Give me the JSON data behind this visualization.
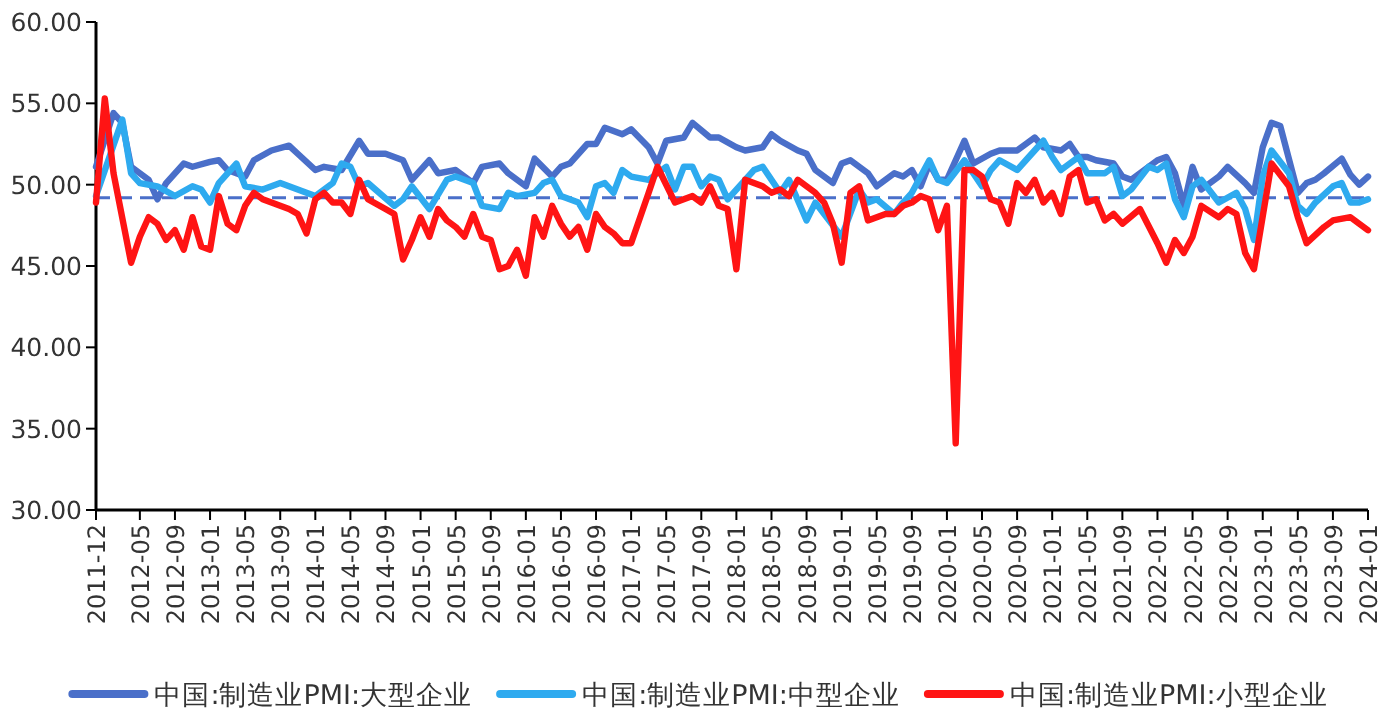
{
  "chart_data": {
    "type": "line",
    "ylim": [
      30,
      60
    ],
    "yticks": [
      {
        "value": 30,
        "label": "30.00"
      },
      {
        "value": 35,
        "label": "35.00"
      },
      {
        "value": 40,
        "label": "40.00"
      },
      {
        "value": 45,
        "label": "45.00"
      },
      {
        "value": 50,
        "label": "50.00"
      },
      {
        "value": 55,
        "label": "55.00"
      },
      {
        "value": 60,
        "label": "60.00"
      }
    ],
    "xlim": [
      "2011-12",
      "2024-01"
    ],
    "xticks": [
      "2011-12",
      "2012-05",
      "2012-09",
      "2013-01",
      "2013-05",
      "2013-09",
      "2014-01",
      "2014-05",
      "2014-09",
      "2015-01",
      "2015-05",
      "2015-09",
      "2016-01",
      "2016-05",
      "2016-09",
      "2017-01",
      "2017-05",
      "2017-09",
      "2018-01",
      "2018-05",
      "2018-09",
      "2019-01",
      "2019-05",
      "2019-09",
      "2020-01",
      "2020-05",
      "2020-09",
      "2021-01",
      "2021-05",
      "2021-09",
      "2022-01",
      "2022-05",
      "2022-09",
      "2023-01",
      "2023-05",
      "2023-09",
      "2024-01"
    ],
    "grid": false,
    "legend": "bottom",
    "marker": "none",
    "line_style": "solid",
    "ref_lines": [
      {
        "axis": "y",
        "value": 49.2,
        "color": "#4a6fc9",
        "line_style": "dashed"
      }
    ],
    "series": [
      {
        "name": "中国:制造业PMI:大型企业",
        "color": "#4a6fc9",
        "x": [
          "2011-12",
          "2012-02",
          "2012-03",
          "2012-04",
          "2012-06",
          "2012-07",
          "2012-08",
          "2012-10",
          "2012-11",
          "2013-01",
          "2013-02",
          "2013-03",
          "2013-05",
          "2013-06",
          "2013-08",
          "2013-10",
          "2013-11",
          "2014-01",
          "2014-02",
          "2014-04",
          "2014-06",
          "2014-07",
          "2014-09",
          "2014-11",
          "2014-12",
          "2015-02",
          "2015-03",
          "2015-05",
          "2015-07",
          "2015-08",
          "2015-10",
          "2015-11",
          "2016-01",
          "2016-02",
          "2016-04",
          "2016-05",
          "2016-06",
          "2016-08",
          "2016-09",
          "2016-10",
          "2016-12",
          "2017-01",
          "2017-03",
          "2017-04",
          "2017-05",
          "2017-07",
          "2017-08",
          "2017-10",
          "2017-11",
          "2018-01",
          "2018-02",
          "2018-04",
          "2018-05",
          "2018-06",
          "2018-08",
          "2018-09",
          "2018-10",
          "2018-12",
          "2019-01",
          "2019-02",
          "2019-04",
          "2019-05",
          "2019-07",
          "2019-08",
          "2019-09",
          "2019-10",
          "2019-11",
          "2019-12",
          "2020-01",
          "2020-03",
          "2020-04",
          "2020-06",
          "2020-07",
          "2020-09",
          "2020-10",
          "2020-11",
          "2020-12",
          "2021-02",
          "2021-03",
          "2021-04",
          "2021-05",
          "2021-06",
          "2021-08",
          "2021-09",
          "2021-10",
          "2021-12",
          "2022-01",
          "2022-02",
          "2022-03",
          "2022-04",
          "2022-05",
          "2022-06",
          "2022-08",
          "2022-09",
          "2022-11",
          "2022-12",
          "2023-01",
          "2023-02",
          "2023-03",
          "2023-05",
          "2023-06",
          "2023-07",
          "2023-08",
          "2023-10",
          "2023-11",
          "2023-12",
          "2024-01"
        ],
        "values": [
          51.1,
          54.4,
          53.8,
          51.1,
          50.3,
          49.1,
          50.1,
          51.3,
          51.1,
          51.4,
          51.5,
          50.9,
          50.5,
          51.5,
          52.1,
          52.4,
          51.9,
          50.9,
          51.1,
          50.9,
          52.7,
          51.9,
          51.9,
          51.5,
          50.3,
          51.5,
          50.7,
          50.9,
          50.1,
          51.1,
          51.3,
          50.7,
          49.9,
          51.6,
          50.5,
          51.1,
          51.3,
          52.5,
          52.5,
          53.5,
          53.1,
          53.4,
          52.3,
          51.3,
          52.7,
          52.9,
          53.8,
          52.9,
          52.9,
          52.3,
          52.1,
          52.3,
          53.1,
          52.7,
          52.1,
          51.9,
          50.9,
          50.1,
          51.3,
          51.5,
          50.7,
          49.9,
          50.7,
          50.5,
          50.9,
          49.9,
          51.3,
          50.3,
          50.3,
          52.7,
          51.3,
          51.9,
          52.1,
          52.1,
          52.5,
          52.9,
          52.3,
          52.1,
          52.5,
          51.7,
          51.7,
          51.5,
          51.3,
          50.5,
          50.3,
          51.1,
          51.5,
          51.7,
          50.7,
          48.7,
          51.1,
          49.7,
          50.5,
          51.1,
          50.1,
          49.5,
          52.3,
          53.8,
          53.6,
          49.5,
          50.1,
          50.3,
          50.7,
          51.6,
          50.6,
          50.0,
          50.5
        ]
      },
      {
        "name": "中国:制造业PMI:中型企业",
        "color": "#2eaaef",
        "x": [
          "2011-12",
          "2012-03",
          "2012-04",
          "2012-05",
          "2012-07",
          "2012-09",
          "2012-11",
          "2012-12",
          "2013-01",
          "2013-02",
          "2013-03",
          "2013-04",
          "2013-05",
          "2013-07",
          "2013-09",
          "2013-12",
          "2014-01",
          "2014-03",
          "2014-04",
          "2014-05",
          "2014-06",
          "2014-07",
          "2014-10",
          "2014-11",
          "2014-12",
          "2015-02",
          "2015-04",
          "2015-05",
          "2015-07",
          "2015-08",
          "2015-10",
          "2015-11",
          "2015-12",
          "2016-02",
          "2016-03",
          "2016-04",
          "2016-05",
          "2016-07",
          "2016-08",
          "2016-09",
          "2016-10",
          "2016-11",
          "2016-12",
          "2017-01",
          "2017-03",
          "2017-04",
          "2017-05",
          "2017-06",
          "2017-07",
          "2017-08",
          "2017-09",
          "2017-10",
          "2017-11",
          "2017-12",
          "2018-02",
          "2018-03",
          "2018-04",
          "2018-06",
          "2018-07",
          "2018-09",
          "2018-10",
          "2018-11",
          "2019-01",
          "2019-03",
          "2019-04",
          "2019-05",
          "2019-07",
          "2019-08",
          "2019-09",
          "2019-10",
          "2019-11",
          "2019-12",
          "2020-01",
          "2020-03",
          "2020-05",
          "2020-06",
          "2020-07",
          "2020-09",
          "2020-10",
          "2020-12",
          "2021-01",
          "2021-02",
          "2021-04",
          "2021-05",
          "2021-07",
          "2021-08",
          "2021-09",
          "2021-10",
          "2021-12",
          "2022-01",
          "2022-02",
          "2022-03",
          "2022-04",
          "2022-05",
          "2022-06",
          "2022-08",
          "2022-10",
          "2022-11",
          "2022-12",
          "2023-01",
          "2023-02",
          "2023-04",
          "2023-05",
          "2023-06",
          "2023-07",
          "2023-09",
          "2023-10",
          "2023-11",
          "2023-12",
          "2024-01"
        ],
        "values": [
          49.3,
          54.0,
          50.7,
          50.1,
          49.9,
          49.3,
          49.9,
          49.7,
          48.9,
          50.1,
          50.7,
          51.3,
          49.9,
          49.7,
          50.1,
          49.5,
          49.3,
          50.1,
          51.3,
          51.1,
          49.9,
          50.1,
          48.7,
          49.1,
          49.9,
          48.5,
          50.3,
          50.5,
          50.1,
          48.7,
          48.5,
          49.5,
          49.3,
          49.5,
          50.1,
          50.3,
          49.3,
          48.9,
          48.0,
          49.9,
          50.1,
          49.5,
          50.9,
          50.5,
          50.3,
          50.7,
          51.1,
          49.7,
          51.1,
          51.1,
          49.9,
          50.5,
          50.3,
          49.1,
          50.3,
          50.9,
          51.1,
          49.5,
          50.3,
          47.8,
          48.9,
          48.2,
          46.8,
          49.7,
          48.9,
          49.1,
          48.2,
          48.9,
          49.5,
          50.5,
          51.5,
          50.3,
          50.1,
          51.5,
          49.9,
          50.9,
          51.5,
          50.9,
          51.5,
          52.7,
          51.7,
          50.9,
          51.7,
          50.7,
          50.7,
          51.1,
          49.3,
          49.7,
          51.1,
          50.9,
          51.3,
          49.1,
          48.0,
          49.9,
          50.3,
          48.9,
          49.5,
          48.5,
          46.6,
          50.5,
          52.1,
          50.7,
          48.7,
          48.2,
          48.9,
          49.9,
          50.1,
          48.9,
          48.9,
          49.1
        ]
      },
      {
        "name": "中国:制造业PMI:小型企业",
        "color": "#ff1414",
        "x": [
          "2011-12",
          "2012-01",
          "2012-02",
          "2012-04",
          "2012-05",
          "2012-06",
          "2012-07",
          "2012-08",
          "2012-09",
          "2012-10",
          "2012-11",
          "2012-12",
          "2013-01",
          "2013-02",
          "2013-03",
          "2013-04",
          "2013-05",
          "2013-06",
          "2013-07",
          "2013-10",
          "2013-11",
          "2013-12",
          "2014-01",
          "2014-02",
          "2014-03",
          "2014-04",
          "2014-05",
          "2014-06",
          "2014-07",
          "2014-09",
          "2014-10",
          "2014-11",
          "2014-12",
          "2015-01",
          "2015-02",
          "2015-03",
          "2015-04",
          "2015-05",
          "2015-06",
          "2015-07",
          "2015-08",
          "2015-09",
          "2015-10",
          "2015-11",
          "2015-12",
          "2016-01",
          "2016-02",
          "2016-03",
          "2016-04",
          "2016-05",
          "2016-06",
          "2016-07",
          "2016-08",
          "2016-09",
          "2016-10",
          "2016-11",
          "2016-12",
          "2017-01",
          "2017-03",
          "2017-04",
          "2017-06",
          "2017-08",
          "2017-09",
          "2017-10",
          "2017-11",
          "2017-12",
          "2018-01",
          "2018-02",
          "2018-04",
          "2018-05",
          "2018-06",
          "2018-07",
          "2018-08",
          "2018-10",
          "2018-11",
          "2018-12",
          "2019-01",
          "2019-02",
          "2019-03",
          "2019-04",
          "2019-06",
          "2019-07",
          "2019-08",
          "2019-09",
          "2019-10",
          "2019-11",
          "2019-12",
          "2020-01",
          "2020-02",
          "2020-03",
          "2020-04",
          "2020-05",
          "2020-06",
          "2020-07",
          "2020-08",
          "2020-09",
          "2020-10",
          "2020-11",
          "2020-12",
          "2021-01",
          "2021-02",
          "2021-03",
          "2021-04",
          "2021-05",
          "2021-06",
          "2021-07",
          "2021-08",
          "2021-09",
          "2021-11",
          "2022-01",
          "2022-02",
          "2022-03",
          "2022-04",
          "2022-05",
          "2022-06",
          "2022-08",
          "2022-09",
          "2022-10",
          "2022-11",
          "2022-12",
          "2023-02",
          "2023-04",
          "2023-05",
          "2023-06",
          "2023-08",
          "2023-09",
          "2023-11",
          "2023-12",
          "2024-01"
        ],
        "values": [
          48.9,
          55.3,
          50.7,
          45.2,
          46.8,
          48.0,
          47.6,
          46.6,
          47.2,
          46.0,
          48.0,
          46.2,
          46.0,
          49.3,
          47.6,
          47.2,
          48.7,
          49.5,
          49.1,
          48.5,
          48.2,
          47.0,
          49.1,
          49.5,
          48.9,
          48.9,
          48.2,
          50.3,
          49.1,
          48.5,
          48.2,
          45.4,
          46.6,
          48.0,
          46.8,
          48.5,
          47.8,
          47.4,
          46.8,
          48.2,
          46.8,
          46.6,
          44.8,
          45.0,
          46.0,
          44.4,
          48.0,
          46.8,
          48.7,
          47.6,
          46.8,
          47.4,
          46.0,
          48.2,
          47.4,
          47.0,
          46.4,
          46.4,
          49.5,
          51.1,
          48.9,
          49.3,
          48.9,
          49.9,
          48.7,
          48.5,
          44.8,
          50.3,
          49.9,
          49.5,
          49.7,
          49.3,
          50.3,
          49.5,
          48.9,
          47.6,
          45.2,
          49.5,
          49.9,
          47.8,
          48.2,
          48.2,
          48.7,
          48.9,
          49.3,
          49.1,
          47.2,
          48.7,
          34.1,
          50.9,
          50.9,
          50.5,
          49.1,
          48.9,
          47.6,
          50.1,
          49.5,
          50.3,
          48.9,
          49.5,
          48.2,
          50.5,
          50.9,
          48.9,
          49.1,
          47.8,
          48.2,
          47.6,
          48.5,
          46.4,
          45.2,
          46.6,
          45.8,
          46.8,
          48.7,
          48.0,
          48.5,
          48.2,
          45.8,
          44.8,
          51.3,
          49.9,
          48.0,
          46.4,
          47.4,
          47.8,
          48.0,
          47.6,
          47.2
        ]
      }
    ]
  }
}
